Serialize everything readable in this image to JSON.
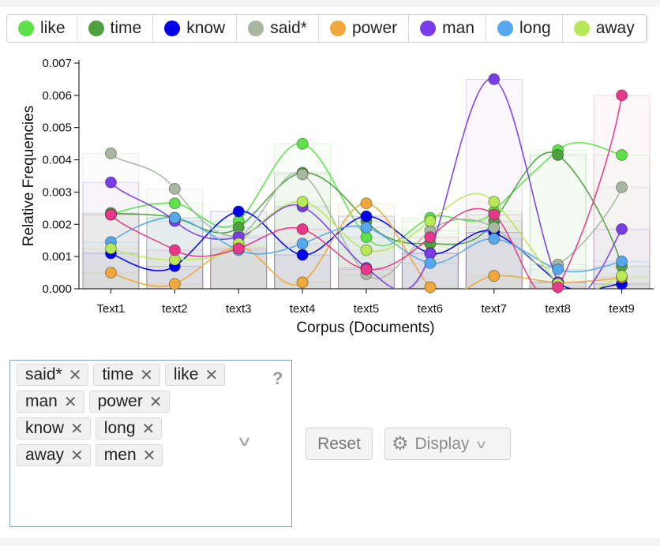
{
  "legend": [
    {
      "label": "like",
      "color": "#5de24a"
    },
    {
      "label": "time",
      "color": "#4fa03f"
    },
    {
      "label": "know",
      "color": "#0000ee"
    },
    {
      "label": "said*",
      "color": "#a8b8a0"
    },
    {
      "label": "power",
      "color": "#f0a83a"
    },
    {
      "label": "man",
      "color": "#7a3ce8"
    },
    {
      "label": "long",
      "color": "#55a8ee"
    },
    {
      "label": "away",
      "color": "#b8e858"
    }
  ],
  "chart_data": {
    "type": "line",
    "xlabel": "Corpus (Documents)",
    "ylabel": "Relative Frequencies",
    "ylim": [
      0,
      0.007
    ],
    "yticks": [
      "0.000",
      "0.001",
      "0.002",
      "0.003",
      "0.004",
      "0.005",
      "0.006",
      "0.007"
    ],
    "categories": [
      "Text1",
      "text2",
      "text3",
      "text4",
      "text5",
      "text6",
      "text7",
      "text8",
      "text9"
    ],
    "series": [
      {
        "name": "like",
        "color": "#5de24a",
        "values": [
          0.0023,
          0.00265,
          0.0021,
          0.0045,
          0.0016,
          0.0022,
          0.0024,
          0.0043,
          0.00415
        ]
      },
      {
        "name": "time",
        "color": "#4fa03f",
        "values": [
          0.00235,
          0.0022,
          0.0019,
          0.0036,
          0.0021,
          0.0014,
          0.0021,
          0.00415,
          0.0007
        ]
      },
      {
        "name": "know",
        "color": "#0000ee",
        "values": [
          0.0011,
          0.0007,
          0.0024,
          0.00105,
          0.00225,
          0.0011,
          0.00175,
          0.0002,
          0.00015
        ]
      },
      {
        "name": "said*",
        "color": "#a8b8a0",
        "values": [
          0.0042,
          0.0031,
          0.00165,
          0.00355,
          0.00045,
          0.0018,
          0.0019,
          0.00075,
          0.00315
        ]
      },
      {
        "name": "power",
        "color": "#f0a83a",
        "values": [
          0.0005,
          0.00015,
          0.0013,
          0.0002,
          0.00265,
          5e-05,
          0.0004,
          0.0002,
          0.00035
        ]
      },
      {
        "name": "man",
        "color": "#7a3ce8",
        "values": [
          0.0033,
          0.0021,
          0.0016,
          0.00255,
          0.00065,
          0.0011,
          0.0065,
          0.0002,
          0.00185
        ]
      },
      {
        "name": "long",
        "color": "#55a8ee",
        "values": [
          0.00145,
          0.0022,
          0.0012,
          0.0014,
          0.0019,
          0.0008,
          0.00155,
          0.0006,
          0.00085
        ]
      },
      {
        "name": "away",
        "color": "#b8e858",
        "values": [
          0.00125,
          0.0009,
          0.0014,
          0.0027,
          0.0012,
          0.0021,
          0.0027,
          0.00015,
          0.0004
        ]
      },
      {
        "name": "men",
        "color": "#e8388a",
        "values": [
          0.0023,
          0.0012,
          0.00125,
          0.00185,
          0.0006,
          0.0016,
          0.0023,
          5e-05,
          0.006
        ]
      }
    ]
  },
  "terms": {
    "tags": [
      "said*",
      "time",
      "like",
      "man",
      "power",
      "know",
      "long",
      "away",
      "men"
    ],
    "help": "?"
  },
  "controls": {
    "reset_label": "Reset",
    "display_label": "Display"
  }
}
